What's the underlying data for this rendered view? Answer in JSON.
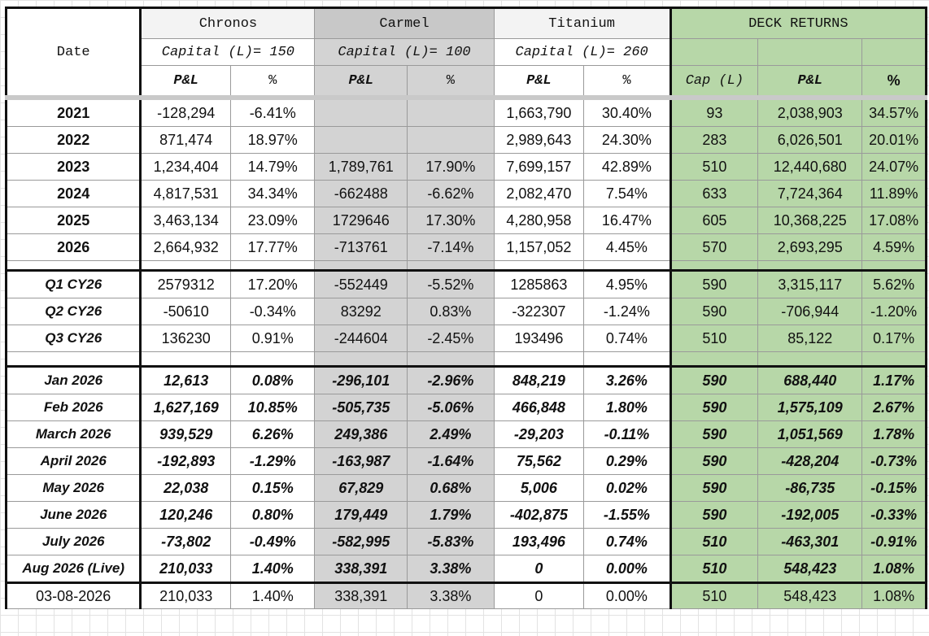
{
  "header": {
    "date_label": "Date",
    "strategies": [
      {
        "name": "Chronos",
        "capital": "Capital (L)= 150"
      },
      {
        "name": "Carmel",
        "capital": "Capital (L)= 100"
      },
      {
        "name": "Titanium",
        "capital": "Capital (L)= 260"
      }
    ],
    "deck_returns": "DECK RETURNS",
    "pl_label": "P&L",
    "pct_label": "%",
    "cap_label": "Cap (L)",
    "deck_pl_label": "P&L",
    "deck_pct_label": "%"
  },
  "years": [
    {
      "date": "2021",
      "ch_pl": "-128,294",
      "ch_pct": "-6.41%",
      "ca_pl": "",
      "ca_pct": "",
      "ti_pl": "1,663,790",
      "ti_pct": "30.40%",
      "cap": "93",
      "deck_pl": "2,038,903",
      "deck_pct": "34.57%"
    },
    {
      "date": "2022",
      "ch_pl": "871,474",
      "ch_pct": "18.97%",
      "ca_pl": "",
      "ca_pct": "",
      "ti_pl": "2,989,643",
      "ti_pct": "24.30%",
      "cap": "283",
      "deck_pl": "6,026,501",
      "deck_pct": "20.01%"
    },
    {
      "date": "2023",
      "ch_pl": "1,234,404",
      "ch_pct": "14.79%",
      "ca_pl": "1,789,761",
      "ca_pct": "17.90%",
      "ti_pl": "7,699,157",
      "ti_pct": "42.89%",
      "cap": "510",
      "deck_pl": "12,440,680",
      "deck_pct": "24.07%"
    },
    {
      "date": "2024",
      "ch_pl": "4,817,531",
      "ch_pct": "34.34%",
      "ca_pl": "-662488",
      "ca_pct": "-6.62%",
      "ti_pl": "2,082,470",
      "ti_pct": "7.54%",
      "cap": "633",
      "deck_pl": "7,724,364",
      "deck_pct": "11.89%"
    },
    {
      "date": "2025",
      "ch_pl": "3,463,134",
      "ch_pct": "23.09%",
      "ca_pl": "1729646",
      "ca_pct": "17.30%",
      "ti_pl": "4,280,958",
      "ti_pct": "16.47%",
      "cap": "605",
      "deck_pl": "10,368,225",
      "deck_pct": "17.08%"
    },
    {
      "date": "2026",
      "ch_pl": "2,664,932",
      "ch_pct": "17.77%",
      "ca_pl": "-713761",
      "ca_pct": "-7.14%",
      "ti_pl": "1,157,052",
      "ti_pct": "4.45%",
      "cap": "570",
      "deck_pl": "2,693,295",
      "deck_pct": "4.59%"
    }
  ],
  "quarters": [
    {
      "date": "Q1 CY26",
      "ch_pl": "2579312",
      "ch_pct": "17.20%",
      "ca_pl": "-552449",
      "ca_pct": "-5.52%",
      "ti_pl": "1285863",
      "ti_pct": "4.95%",
      "cap": "590",
      "deck_pl": "3,315,117",
      "deck_pct": "5.62%"
    },
    {
      "date": "Q2 CY26",
      "ch_pl": "-50610",
      "ch_pct": "-0.34%",
      "ca_pl": "83292",
      "ca_pct": "0.83%",
      "ti_pl": "-322307",
      "ti_pct": "-1.24%",
      "cap": "590",
      "deck_pl": "-706,944",
      "deck_pct": "-1.20%"
    },
    {
      "date": "Q3 CY26",
      "ch_pl": "136230",
      "ch_pct": "0.91%",
      "ca_pl": "-244604",
      "ca_pct": "-2.45%",
      "ti_pl": "193496",
      "ti_pct": "0.74%",
      "cap": "510",
      "deck_pl": "85,122",
      "deck_pct": "0.17%"
    }
  ],
  "months": [
    {
      "date": "Jan 2026",
      "ch_pl": "12,613",
      "ch_pct": "0.08%",
      "ca_pl": "-296,101",
      "ca_pct": "-2.96%",
      "ti_pl": "848,219",
      "ti_pct": "3.26%",
      "cap": "590",
      "deck_pl": "688,440",
      "deck_pct": "1.17%"
    },
    {
      "date": "Feb 2026",
      "ch_pl": "1,627,169",
      "ch_pct": "10.85%",
      "ca_pl": "-505,735",
      "ca_pct": "-5.06%",
      "ti_pl": "466,848",
      "ti_pct": "1.80%",
      "cap": "590",
      "deck_pl": "1,575,109",
      "deck_pct": "2.67%"
    },
    {
      "date": "March 2026",
      "ch_pl": "939,529",
      "ch_pct": "6.26%",
      "ca_pl": "249,386",
      "ca_pct": "2.49%",
      "ti_pl": "-29,203",
      "ti_pct": "-0.11%",
      "cap": "590",
      "deck_pl": "1,051,569",
      "deck_pct": "1.78%"
    },
    {
      "date": "April 2026",
      "ch_pl": "-192,893",
      "ch_pct": "-1.29%",
      "ca_pl": "-163,987",
      "ca_pct": "-1.64%",
      "ti_pl": "75,562",
      "ti_pct": "0.29%",
      "cap": "590",
      "deck_pl": "-428,204",
      "deck_pct": "-0.73%"
    },
    {
      "date": "May 2026",
      "ch_pl": "22,038",
      "ch_pct": "0.15%",
      "ca_pl": "67,829",
      "ca_pct": "0.68%",
      "ti_pl": "5,006",
      "ti_pct": "0.02%",
      "cap": "590",
      "deck_pl": "-86,735",
      "deck_pct": "-0.15%"
    },
    {
      "date": "June 2026",
      "ch_pl": "120,246",
      "ch_pct": "0.80%",
      "ca_pl": "179,449",
      "ca_pct": "1.79%",
      "ti_pl": "-402,875",
      "ti_pct": "-1.55%",
      "cap": "590",
      "deck_pl": "-192,005",
      "deck_pct": "-0.33%"
    },
    {
      "date": "July 2026",
      "ch_pl": "-73,802",
      "ch_pct": "-0.49%",
      "ca_pl": "-582,995",
      "ca_pct": "-5.83%",
      "ti_pl": "193,496",
      "ti_pct": "0.74%",
      "cap": "510",
      "deck_pl": "-463,301",
      "deck_pct": "-0.91%"
    },
    {
      "date": "Aug 2026 (Live)",
      "ch_pl": "210,033",
      "ch_pct": "1.40%",
      "ca_pl": "338,391",
      "ca_pct": "3.38%",
      "ti_pl": "0",
      "ti_pct": "0.00%",
      "cap": "510",
      "deck_pl": "548,423",
      "deck_pct": "1.08%"
    }
  ],
  "daily": {
    "date": "03-08-2026",
    "ch_pl": "210,033",
    "ch_pct": "1.40%",
    "ca_pl": "338,391",
    "ca_pct": "3.38%",
    "ti_pl": "0",
    "ti_pct": "0.00%",
    "cap": "510",
    "deck_pl": "548,423",
    "deck_pct": "1.08%"
  },
  "colors": {
    "carmel_gray": "#d3d3d3",
    "deck_green": "#b7d7a8",
    "border_dark": "#111111"
  }
}
